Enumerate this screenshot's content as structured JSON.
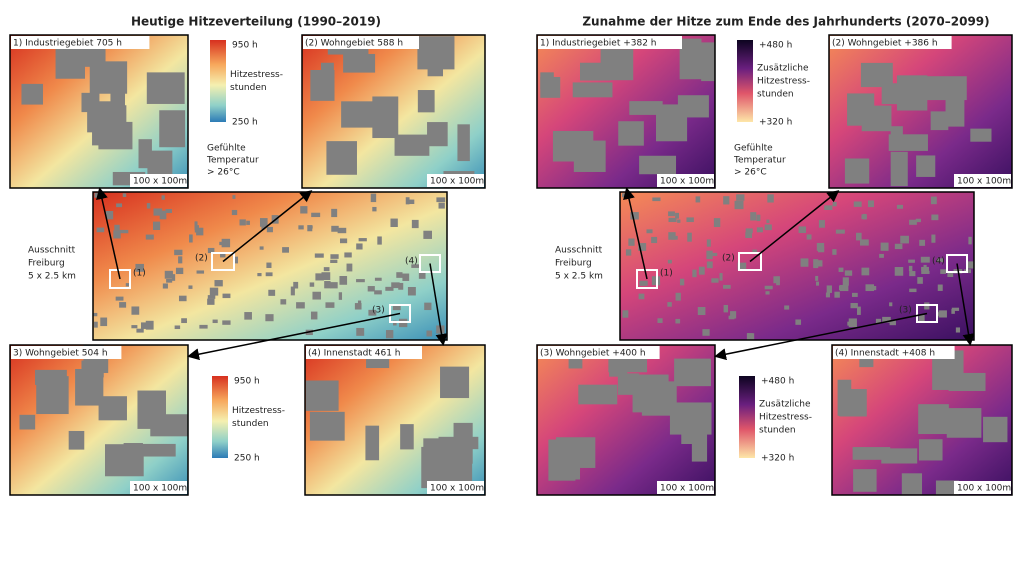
{
  "panels": [
    {
      "title": "Heutige Hitzeverteilung (1990–2019)",
      "insets": [
        {
          "label": "1) Industriegebiet 705 h",
          "scale": "100 x 100m"
        },
        {
          "label": "(2) Wohngebiet 588 h",
          "scale": "100 x 100m"
        },
        {
          "label": "3) Wohngebiet 504 h",
          "scale": "100 x 100m"
        },
        {
          "label": "(4) Innenstadt 461 h",
          "scale": "100 x 100m"
        }
      ],
      "legend_top": {
        "max": "950 h",
        "lines": [
          "Hitzestress-",
          "stunden"
        ],
        "min": "250 h"
      },
      "note": [
        "Gefühlte",
        "Temperatur",
        "> 26°C"
      ],
      "overview": {
        "lines": [
          "Ausschnitt",
          "Freiburg",
          "5 x 2.5 km"
        ],
        "markers": [
          "(1)",
          "(2)",
          "(3)",
          "(4)"
        ]
      },
      "legend_bottom": {
        "max": "950 h",
        "lines": [
          "Hitzestress-",
          "stunden"
        ],
        "min": "250 h"
      }
    },
    {
      "title": "Zunahme der Hitze zum Ende des Jahrhunderts (2070–2099)",
      "insets": [
        {
          "label": "1) Industriegebiet +382 h",
          "scale": "100 x 100m"
        },
        {
          "label": "(2) Wohngebiet +386 h",
          "scale": "100 x 100m"
        },
        {
          "label": "(3) Wohngebiet +400 h",
          "scale": "100 x 100m"
        },
        {
          "label": "(4) Innenstadt +408 h",
          "scale": "100 x 100m"
        }
      ],
      "legend_top": {
        "max": "+480 h",
        "lines": [
          "Zusätzliche",
          "Hitzestress-",
          "stunden"
        ],
        "min": "+320 h"
      },
      "note": [
        "Gefühlte",
        "Temperatur",
        "> 26°C"
      ],
      "overview": {
        "lines": [
          "Ausschnitt",
          "Freiburg",
          "5 x 2.5 km"
        ],
        "markers": [
          "(1)",
          "(2)",
          "(3)",
          "(4)"
        ]
      },
      "legend_bottom": {
        "max": "+480 h",
        "lines": [
          "Zusätzliche",
          "Hitzestress-",
          "stunden"
        ],
        "min": "+320 h"
      }
    }
  ]
}
